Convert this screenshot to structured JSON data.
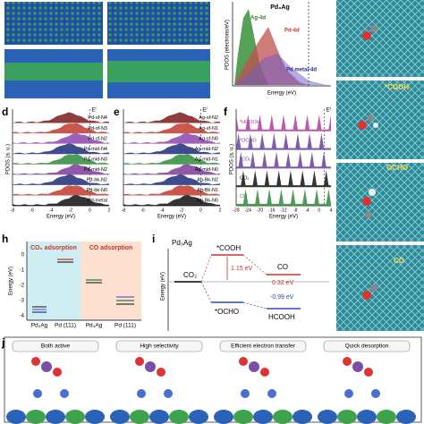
{
  "panel_top": {
    "title": "Pd₃Ag",
    "labels": [
      "Ag-4d",
      "Pd-4d",
      "Pd metal-4d"
    ],
    "ylabel": "PDOS (electrons/eV)",
    "xlabel": "Energy (eV)"
  },
  "panel_d": {
    "letter": "d",
    "fermi": "Eᶠ",
    "series": [
      "Pd-sf-N4",
      "Pd-sf-N3",
      "Pd-sf-N2",
      "Pd-mid-N4",
      "Pd-mid-N3",
      "Pd-mid-N2",
      "Pd-bk-N2",
      "Pd-bk-N0",
      "Pd-metal"
    ],
    "xticks": [
      "-8",
      "-6",
      "-4",
      "-2",
      "0",
      "2"
    ],
    "xlabel": "Energy (eV)",
    "ylabel": "PDOS (a. u.)"
  },
  "panel_e": {
    "letter": "e",
    "fermi": "Eᶠ",
    "series": [
      "Ag-sf-N2",
      "Ag-sf-N1",
      "Ag-sf-N0",
      "Ag-mid-N2",
      "Ag-mid-N1",
      "Ag-mid-N0",
      "Ag-Bk-N2",
      "Ag-Bk-N1",
      "Ag-Bk-N0"
    ],
    "xticks": [
      "-8",
      "-6",
      "-4",
      "-2",
      "0",
      "2"
    ],
    "xlabel": "Energy (eV)"
  },
  "panel_f": {
    "letter": "f",
    "fermi": "Eᶠ",
    "series": [
      "*HCOOH",
      "*OCHO",
      "*CO₂",
      "CO₂",
      "CO"
    ],
    "xticks": [
      "-28",
      "-24",
      "-20",
      "-16",
      "-12",
      "-8",
      "-4",
      "0",
      "4"
    ],
    "xlabel": "Energy (eV)",
    "ylabel": "PDOS (a. u.)"
  },
  "panel_side": {
    "labels": [
      "*COOH",
      "OCHO",
      "CO"
    ]
  },
  "panel_h": {
    "letter": "h",
    "headers": [
      "CO₂ adsorption",
      "CO adsorption"
    ],
    "yticks": [
      "0",
      "-1",
      "-2",
      "-3",
      "-4"
    ],
    "ylabel": "Energy (eV)",
    "categories": [
      "Pd₃Ag",
      "Pd (111)",
      "Pd₃Ag",
      "Pd (111)"
    ]
  },
  "panel_i": {
    "letter": "i",
    "title": "Pd₃Ag",
    "ylabel": "Energy (eV)",
    "states": [
      "CO₂",
      "*COOH",
      "CO",
      "*OCHO",
      "HCOOH"
    ],
    "barriers": [
      "1.15 eV",
      "0.32 eV",
      "-0.99 eV"
    ]
  },
  "panel_j": {
    "letter": "j",
    "titles": [
      "Both active",
      "High selectivity",
      "Efficient electron transfer",
      "Quick desorption"
    ]
  }
}
